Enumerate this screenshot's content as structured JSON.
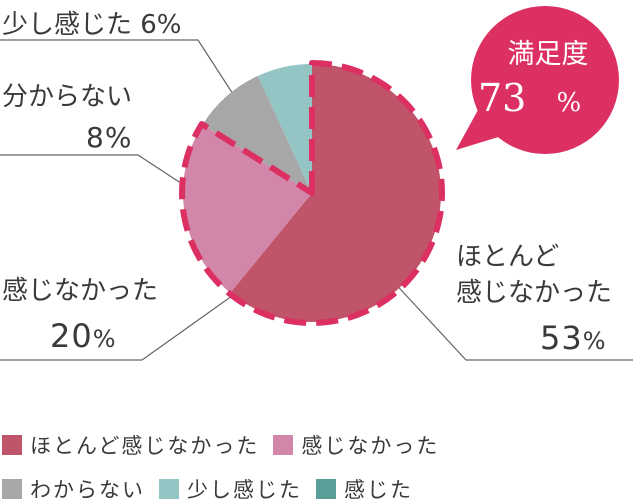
{
  "chart_data": {
    "type": "pie",
    "categories": [
      "ほとんど感じなかった",
      "感じなかった",
      "わからない",
      "少し感じた",
      "感じた"
    ],
    "values": [
      53,
      20,
      8,
      6,
      0
    ],
    "colors": [
      "#c05468",
      "#d286a9",
      "#a7a7a7",
      "#94c5c5",
      "#5a9e98"
    ],
    "labels": [
      {
        "lines": [
          "ほとんど",
          "感じなかった"
        ],
        "pct": "53",
        "unit": "%"
      },
      {
        "lines": [
          "感じなかった"
        ],
        "pct": "20",
        "unit": "%"
      },
      {
        "lines": [
          "分からない"
        ],
        "pct": "8",
        "unit": "%"
      },
      {
        "lines": [
          "少し感じた 6%"
        ],
        "pct": "",
        "unit": ""
      }
    ],
    "highlight": {
      "title": "満足度",
      "value": "73",
      "unit": "%"
    },
    "highlight_color": "#dc3063",
    "legend_position": "bottom"
  }
}
